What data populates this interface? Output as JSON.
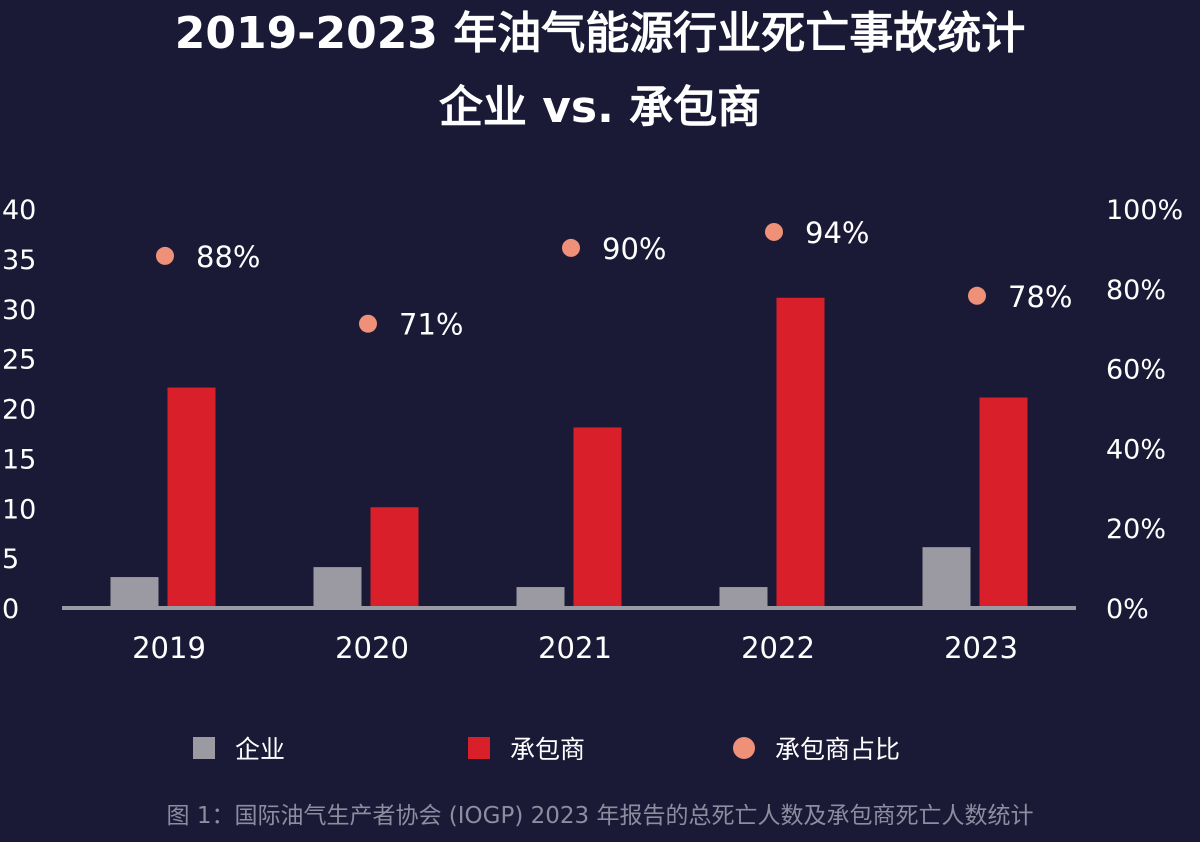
{
  "chart_data": {
    "type": "bar",
    "title": "2019-2023 年油气能源行业死亡事故统计",
    "subtitle": "企业 vs. 承包商",
    "categories": [
      "2019",
      "2020",
      "2021",
      "2022",
      "2023"
    ],
    "series": [
      {
        "name": "企业",
        "type": "bar",
        "axis": "left",
        "color": "#9b9aa2",
        "values": [
          3,
          4,
          2,
          2,
          6
        ]
      },
      {
        "name": "承包商",
        "type": "bar",
        "axis": "left",
        "color": "#d9202a",
        "values": [
          22,
          10,
          18,
          31,
          21
        ]
      },
      {
        "name": "承包商占比",
        "type": "scatter",
        "axis": "right",
        "color": "#ef9079",
        "values": [
          88,
          71,
          90,
          94,
          78
        ],
        "labels": [
          "88%",
          "71%",
          "90%",
          "94%",
          "78%"
        ]
      }
    ],
    "y_left": {
      "range": [
        0,
        40
      ],
      "ticks": [
        "0",
        "5",
        "10",
        "15",
        "20",
        "25",
        "30",
        "35",
        "40"
      ]
    },
    "y_right": {
      "range": [
        0,
        100
      ],
      "ticks": [
        "0%",
        "20%",
        "40%",
        "60%",
        "80%",
        "100%"
      ]
    },
    "grid": false,
    "legend_position": "bottom"
  },
  "caption": "图 1：国际油气生产者协会 (IOGP) 2023 年报告的总死亡人数及承包商死亡人数统计"
}
